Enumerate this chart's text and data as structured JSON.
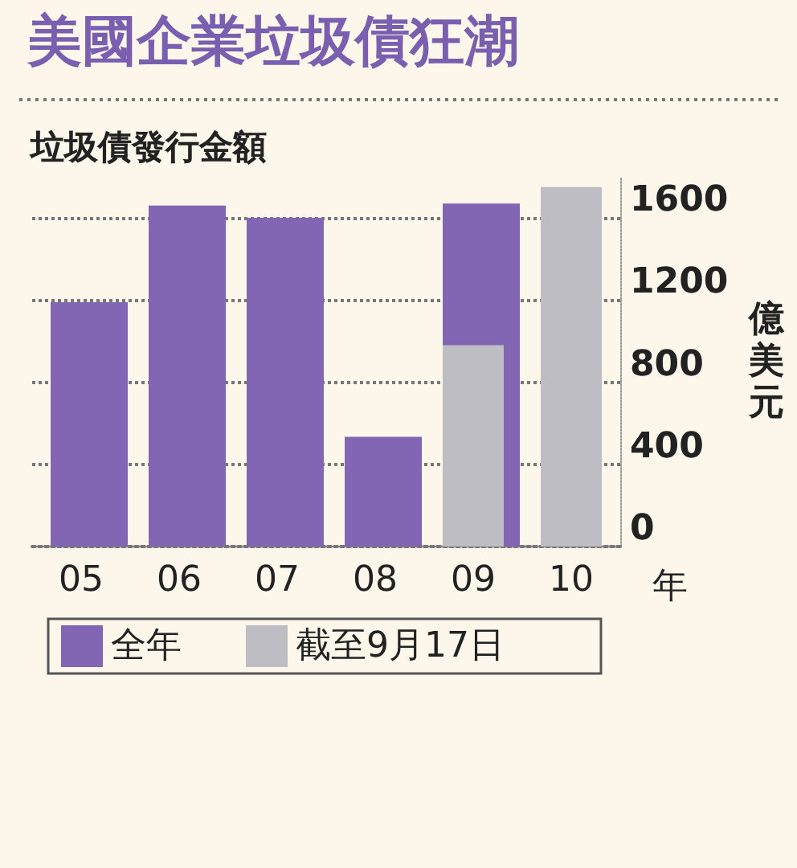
{
  "chart_data": {
    "type": "bar",
    "title": "美國企業垃圾債狂潮",
    "subtitle": "垃圾債發行金額",
    "xlabel": "年",
    "ylabel": "億美元",
    "categories": [
      "05",
      "06",
      "07",
      "08",
      "09",
      "10"
    ],
    "series": [
      {
        "name": "全年",
        "color": "#8266b3",
        "values": [
          1190,
          1660,
          1600,
          534,
          1670,
          null
        ]
      },
      {
        "name": "截至9月17日",
        "color": "#bdbdc3",
        "values": [
          null,
          null,
          null,
          null,
          980,
          1750
        ]
      }
    ],
    "ylim": [
      0,
      1800
    ],
    "yticks": [
      0,
      400,
      800,
      1200,
      1600
    ],
    "grid": "y",
    "legend": "bottom"
  }
}
